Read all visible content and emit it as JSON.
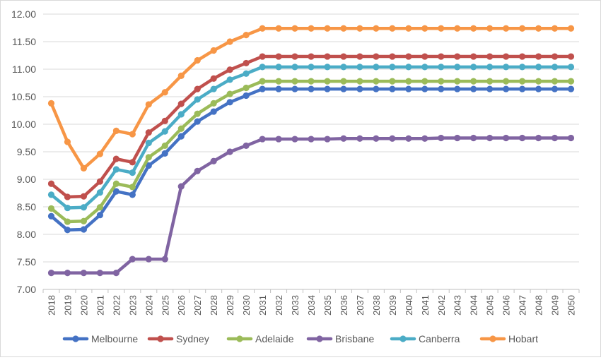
{
  "chart_data": {
    "type": "line",
    "title": "",
    "xlabel": "",
    "ylabel": "",
    "ylim": [
      7.0,
      12.0
    ],
    "y_ticks": [
      "7.00",
      "7.50",
      "8.00",
      "8.50",
      "9.00",
      "9.50",
      "10.00",
      "10.50",
      "11.00",
      "11.50",
      "12.00"
    ],
    "grid": "horizontal",
    "legend_position": "bottom",
    "x": [
      "2018",
      "2019",
      "2020",
      "2021",
      "2022",
      "2023",
      "2024",
      "2025",
      "2026",
      "2027",
      "2028",
      "2029",
      "2030",
      "2031",
      "2032",
      "2033",
      "2034",
      "2035",
      "2036",
      "2037",
      "2038",
      "2039",
      "2040",
      "2041",
      "2042",
      "2043",
      "2044",
      "2045",
      "2046",
      "2047",
      "2048",
      "2049",
      "2050"
    ],
    "series": [
      {
        "name": "Melbourne",
        "color": "#4472c4",
        "values": [
          8.33,
          8.08,
          8.09,
          8.35,
          8.78,
          8.72,
          9.25,
          9.47,
          9.78,
          10.05,
          10.23,
          10.4,
          10.52,
          10.64,
          10.64,
          10.64,
          10.64,
          10.64,
          10.64,
          10.64,
          10.64,
          10.64,
          10.64,
          10.64,
          10.64,
          10.64,
          10.64,
          10.64,
          10.64,
          10.64,
          10.64,
          10.64,
          10.64
        ]
      },
      {
        "name": "Sydney",
        "color": "#c0504d",
        "values": [
          8.92,
          8.68,
          8.69,
          8.96,
          9.37,
          9.31,
          9.85,
          10.06,
          10.37,
          10.64,
          10.83,
          10.99,
          11.11,
          11.23,
          11.23,
          11.23,
          11.23,
          11.23,
          11.23,
          11.23,
          11.23,
          11.23,
          11.23,
          11.23,
          11.23,
          11.23,
          11.23,
          11.23,
          11.23,
          11.23,
          11.23,
          11.23,
          11.23
        ]
      },
      {
        "name": "Adelaide",
        "color": "#9bbb59",
        "values": [
          8.47,
          8.23,
          8.24,
          8.49,
          8.92,
          8.86,
          9.4,
          9.61,
          9.92,
          10.19,
          10.38,
          10.55,
          10.66,
          10.78,
          10.78,
          10.78,
          10.78,
          10.78,
          10.78,
          10.78,
          10.78,
          10.78,
          10.78,
          10.78,
          10.78,
          10.78,
          10.78,
          10.78,
          10.78,
          10.78,
          10.78,
          10.78,
          10.78
        ]
      },
      {
        "name": "Brisbane",
        "color": "#8064a2",
        "values": [
          7.3,
          7.3,
          7.3,
          7.3,
          7.3,
          7.55,
          7.55,
          7.55,
          8.87,
          9.15,
          9.33,
          9.5,
          9.61,
          9.73,
          9.73,
          9.73,
          9.73,
          9.73,
          9.74,
          9.74,
          9.74,
          9.74,
          9.74,
          9.74,
          9.75,
          9.75,
          9.75,
          9.75,
          9.75,
          9.75,
          9.75,
          9.75,
          9.75
        ]
      },
      {
        "name": "Canberra",
        "color": "#4bacc6",
        "values": [
          8.72,
          8.48,
          8.49,
          8.76,
          9.18,
          9.12,
          9.66,
          9.87,
          10.18,
          10.45,
          10.64,
          10.81,
          10.92,
          11.04,
          11.04,
          11.04,
          11.04,
          11.04,
          11.04,
          11.04,
          11.04,
          11.04,
          11.04,
          11.04,
          11.04,
          11.04,
          11.04,
          11.04,
          11.04,
          11.04,
          11.04,
          11.04,
          11.04
        ]
      },
      {
        "name": "Hobart",
        "color": "#f79646",
        "values": [
          10.38,
          9.68,
          9.2,
          9.46,
          9.88,
          9.82,
          10.36,
          10.58,
          10.88,
          11.16,
          11.34,
          11.5,
          11.62,
          11.74,
          11.74,
          11.74,
          11.74,
          11.74,
          11.74,
          11.74,
          11.74,
          11.74,
          11.74,
          11.74,
          11.74,
          11.74,
          11.74,
          11.74,
          11.74,
          11.74,
          11.74,
          11.74,
          11.74
        ]
      }
    ]
  }
}
